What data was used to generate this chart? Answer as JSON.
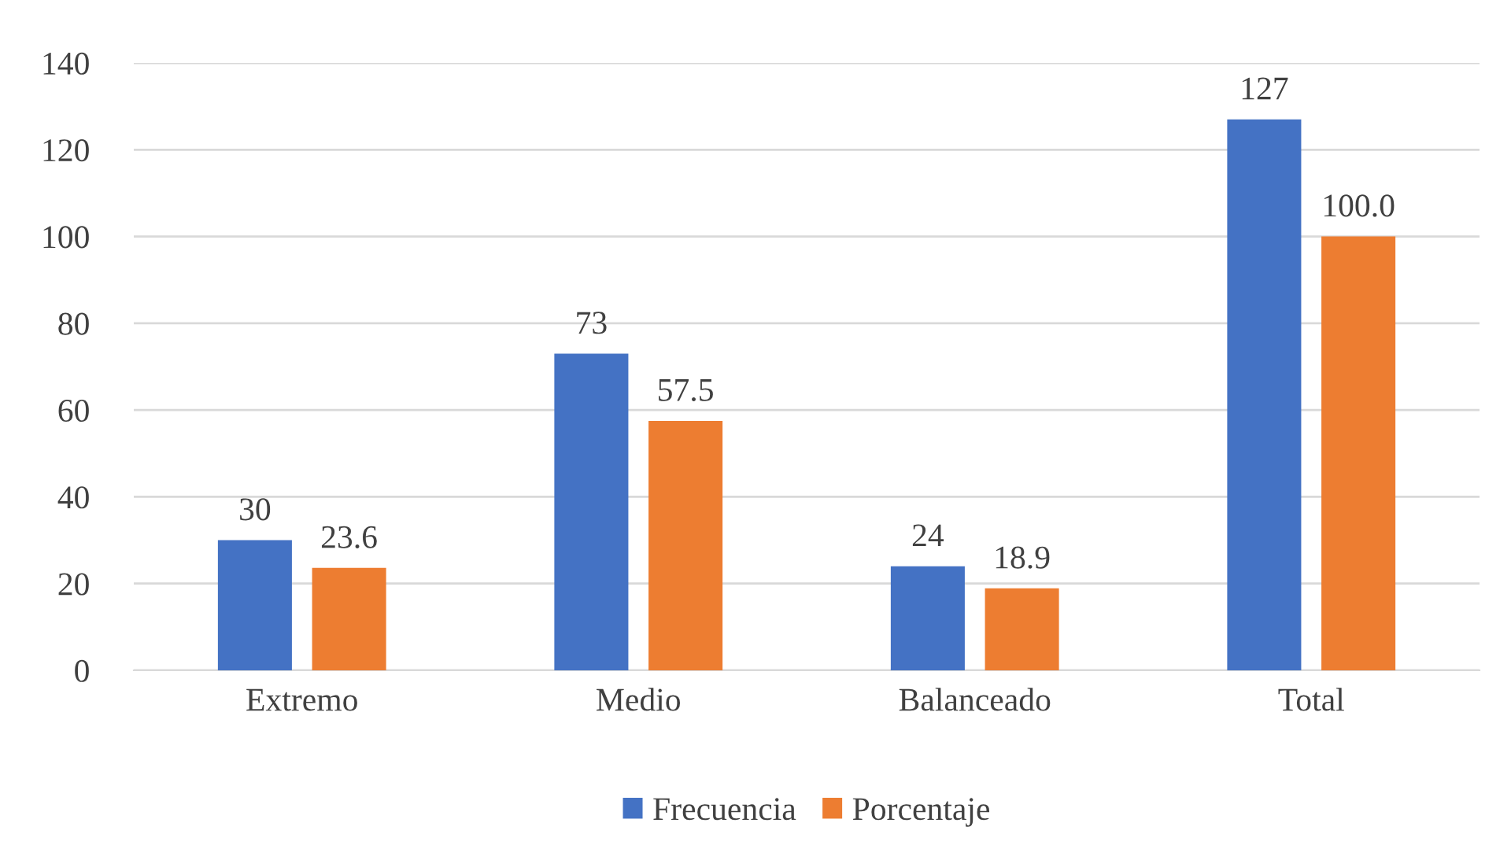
{
  "chart_data": {
    "type": "bar",
    "categories": [
      "Extremo",
      "Medio",
      "Balanceado",
      "Total"
    ],
    "series": [
      {
        "name": "Frecuencia",
        "color": "#4472c4",
        "values": [
          30,
          73,
          24,
          127
        ],
        "value_labels": [
          "30",
          "73",
          "24",
          "127"
        ]
      },
      {
        "name": "Porcentaje",
        "color": "#ed7d31",
        "values": [
          23.6,
          57.5,
          18.9,
          100.0
        ],
        "value_labels": [
          "23.6",
          "57.5",
          "18.9",
          "100.0"
        ]
      }
    ],
    "ylim": [
      0,
      140
    ],
    "yticks": [
      0,
      20,
      40,
      60,
      80,
      100,
      120,
      140
    ],
    "grid": "y",
    "legend": "bottom"
  }
}
